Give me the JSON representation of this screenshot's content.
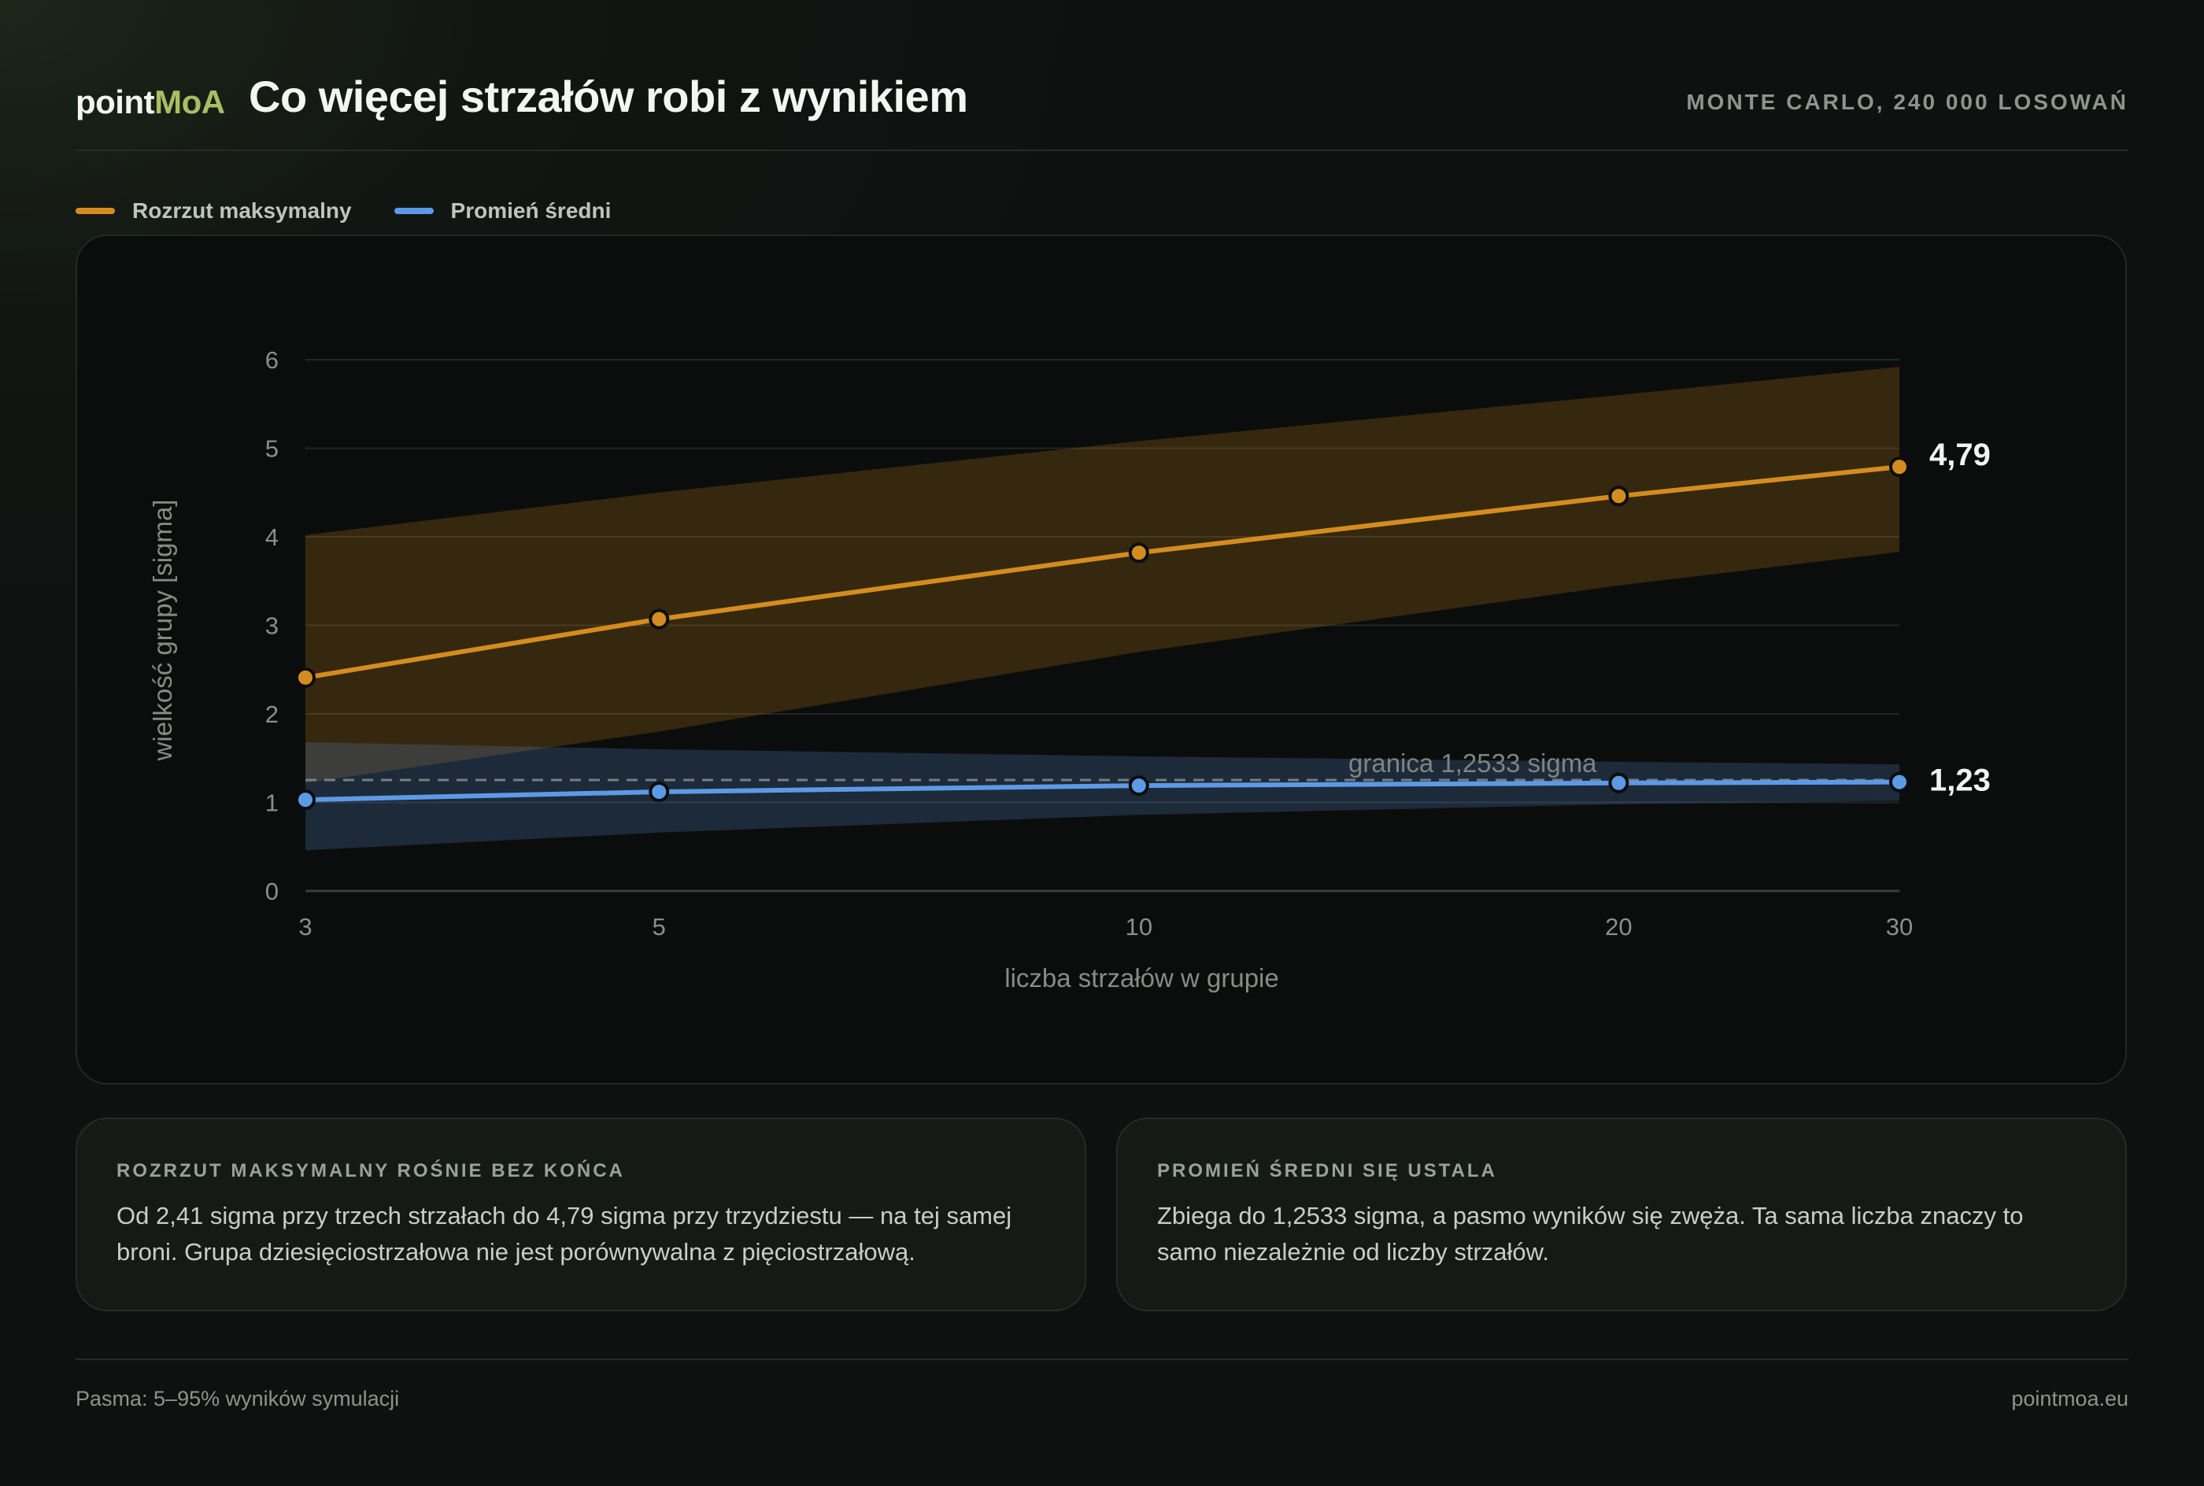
{
  "header": {
    "brand_a": "point",
    "brand_b": "MoA",
    "title": "Co więcej strzałów robi z wynikiem",
    "meta": "MONTE CARLO, 240 000 LOSOWAŃ"
  },
  "legend": [
    {
      "label": "Rozrzut maksymalny",
      "color": "#d48c1f"
    },
    {
      "label": "Promień średni",
      "color": "#5c9ae6"
    }
  ],
  "chart_data": {
    "type": "line",
    "x": [
      3,
      5,
      10,
      20,
      30
    ],
    "x_scale": "log",
    "xlabel": "liczba strzałów w grupie",
    "ylabel": "wielkość grupy [sigma]",
    "ylim": [
      0,
      6
    ],
    "xlim": [
      3,
      30
    ],
    "yticks": [
      0,
      1,
      2,
      3,
      4,
      5,
      6
    ],
    "xticks": [
      3,
      5,
      10,
      20,
      30
    ],
    "grid": "horizontal",
    "series": [
      {
        "name": "Rozrzut maksymalny",
        "color": "#d48c1f",
        "values": [
          2.41,
          3.07,
          3.82,
          4.46,
          4.79
        ],
        "band_low": [
          1.22,
          1.8,
          2.7,
          3.45,
          3.83
        ],
        "band_high": [
          4.02,
          4.5,
          5.08,
          5.6,
          5.92
        ],
        "end_label": "4,79"
      },
      {
        "name": "Promień średni",
        "color": "#5c9ae6",
        "values": [
          1.03,
          1.12,
          1.19,
          1.22,
          1.23
        ],
        "band_low": [
          0.46,
          0.66,
          0.86,
          0.98,
          1.02
        ],
        "band_high": [
          1.68,
          1.6,
          1.52,
          1.46,
          1.43
        ],
        "end_label": "1,23"
      }
    ],
    "reference_line": {
      "y": 1.2533,
      "label": "granica 1,2533 sigma"
    }
  },
  "cards": [
    {
      "title": "ROZRZUT MAKSYMALNY ROŚNIE BEZ KOŃCA",
      "text": "Od 2,41 sigma przy trzech strzałach do 4,79 sigma przy trzydziestu — na tej samej broni. Grupa dziesięciostrzałowa nie jest porównywalna z pięciostrzałową."
    },
    {
      "title": "PROMIEŃ ŚREDNI SIĘ USTALA",
      "text": "Zbiega do 1,2533 sigma, a pasmo wyników się zwęża. Ta sama liczba znaczy to samo niezależnie od liczby strzałów."
    }
  ],
  "footer": {
    "left": "Pasma: 5–95% wyników symulacji",
    "right": "pointmoa.eu"
  }
}
